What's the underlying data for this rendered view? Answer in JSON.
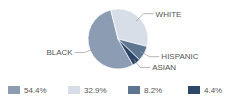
{
  "chart_data": {
    "type": "pie",
    "categories": [
      "BLACK",
      "WHITE",
      "HISPANIC",
      "ASIAN"
    ],
    "values": [
      54.4,
      32.9,
      8.2,
      4.4
    ],
    "value_labels": [
      "54.4%",
      "32.9%",
      "8.2%",
      "4.4%"
    ],
    "colors": [
      "#8c9cb3",
      "#d7dee7",
      "#5f7693",
      "#2c4768"
    ],
    "legend": "bottom"
  }
}
